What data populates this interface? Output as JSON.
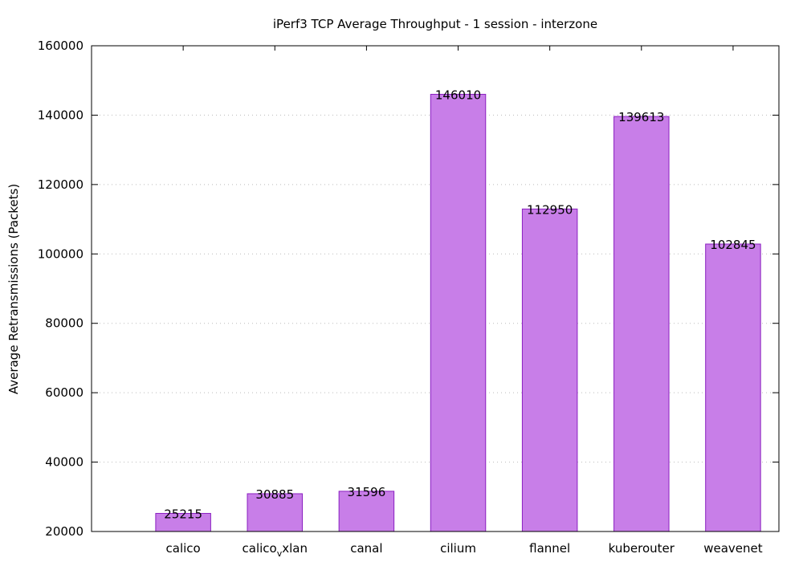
{
  "chart_data": {
    "type": "bar",
    "title": "iPerf3 TCP Average Throughput - 1 session - interzone",
    "xlabel": "",
    "ylabel": "Average Retransmissions (Packets)",
    "categories": [
      {
        "base": "calico",
        "sub": "",
        "rest": ""
      },
      {
        "base": "calico",
        "sub": "v",
        "rest": "xlan"
      },
      {
        "base": "canal",
        "sub": "",
        "rest": ""
      },
      {
        "base": "cilium",
        "sub": "",
        "rest": ""
      },
      {
        "base": "flannel",
        "sub": "",
        "rest": ""
      },
      {
        "base": "kuberouter",
        "sub": "",
        "rest": ""
      },
      {
        "base": "weavenet",
        "sub": "",
        "rest": ""
      }
    ],
    "values": [
      25215,
      30885,
      31596,
      146010,
      112950,
      139613,
      102845
    ],
    "data_labels": [
      "25215",
      "30885",
      "31596",
      "146010",
      "112950",
      "139613",
      "102845"
    ],
    "ylim": [
      20000,
      160000
    ],
    "yticks": [
      20000,
      40000,
      60000,
      80000,
      100000,
      120000,
      140000,
      160000
    ],
    "ytick_labels": [
      "20000",
      "40000",
      "60000",
      "80000",
      "100000",
      "120000",
      "140000",
      "160000"
    ],
    "grid": true,
    "colors": {
      "bar_fill": "#c87ee8",
      "bar_stroke": "#8a1fc0",
      "grid": "#bbbbbb",
      "axis": "#000000"
    }
  }
}
